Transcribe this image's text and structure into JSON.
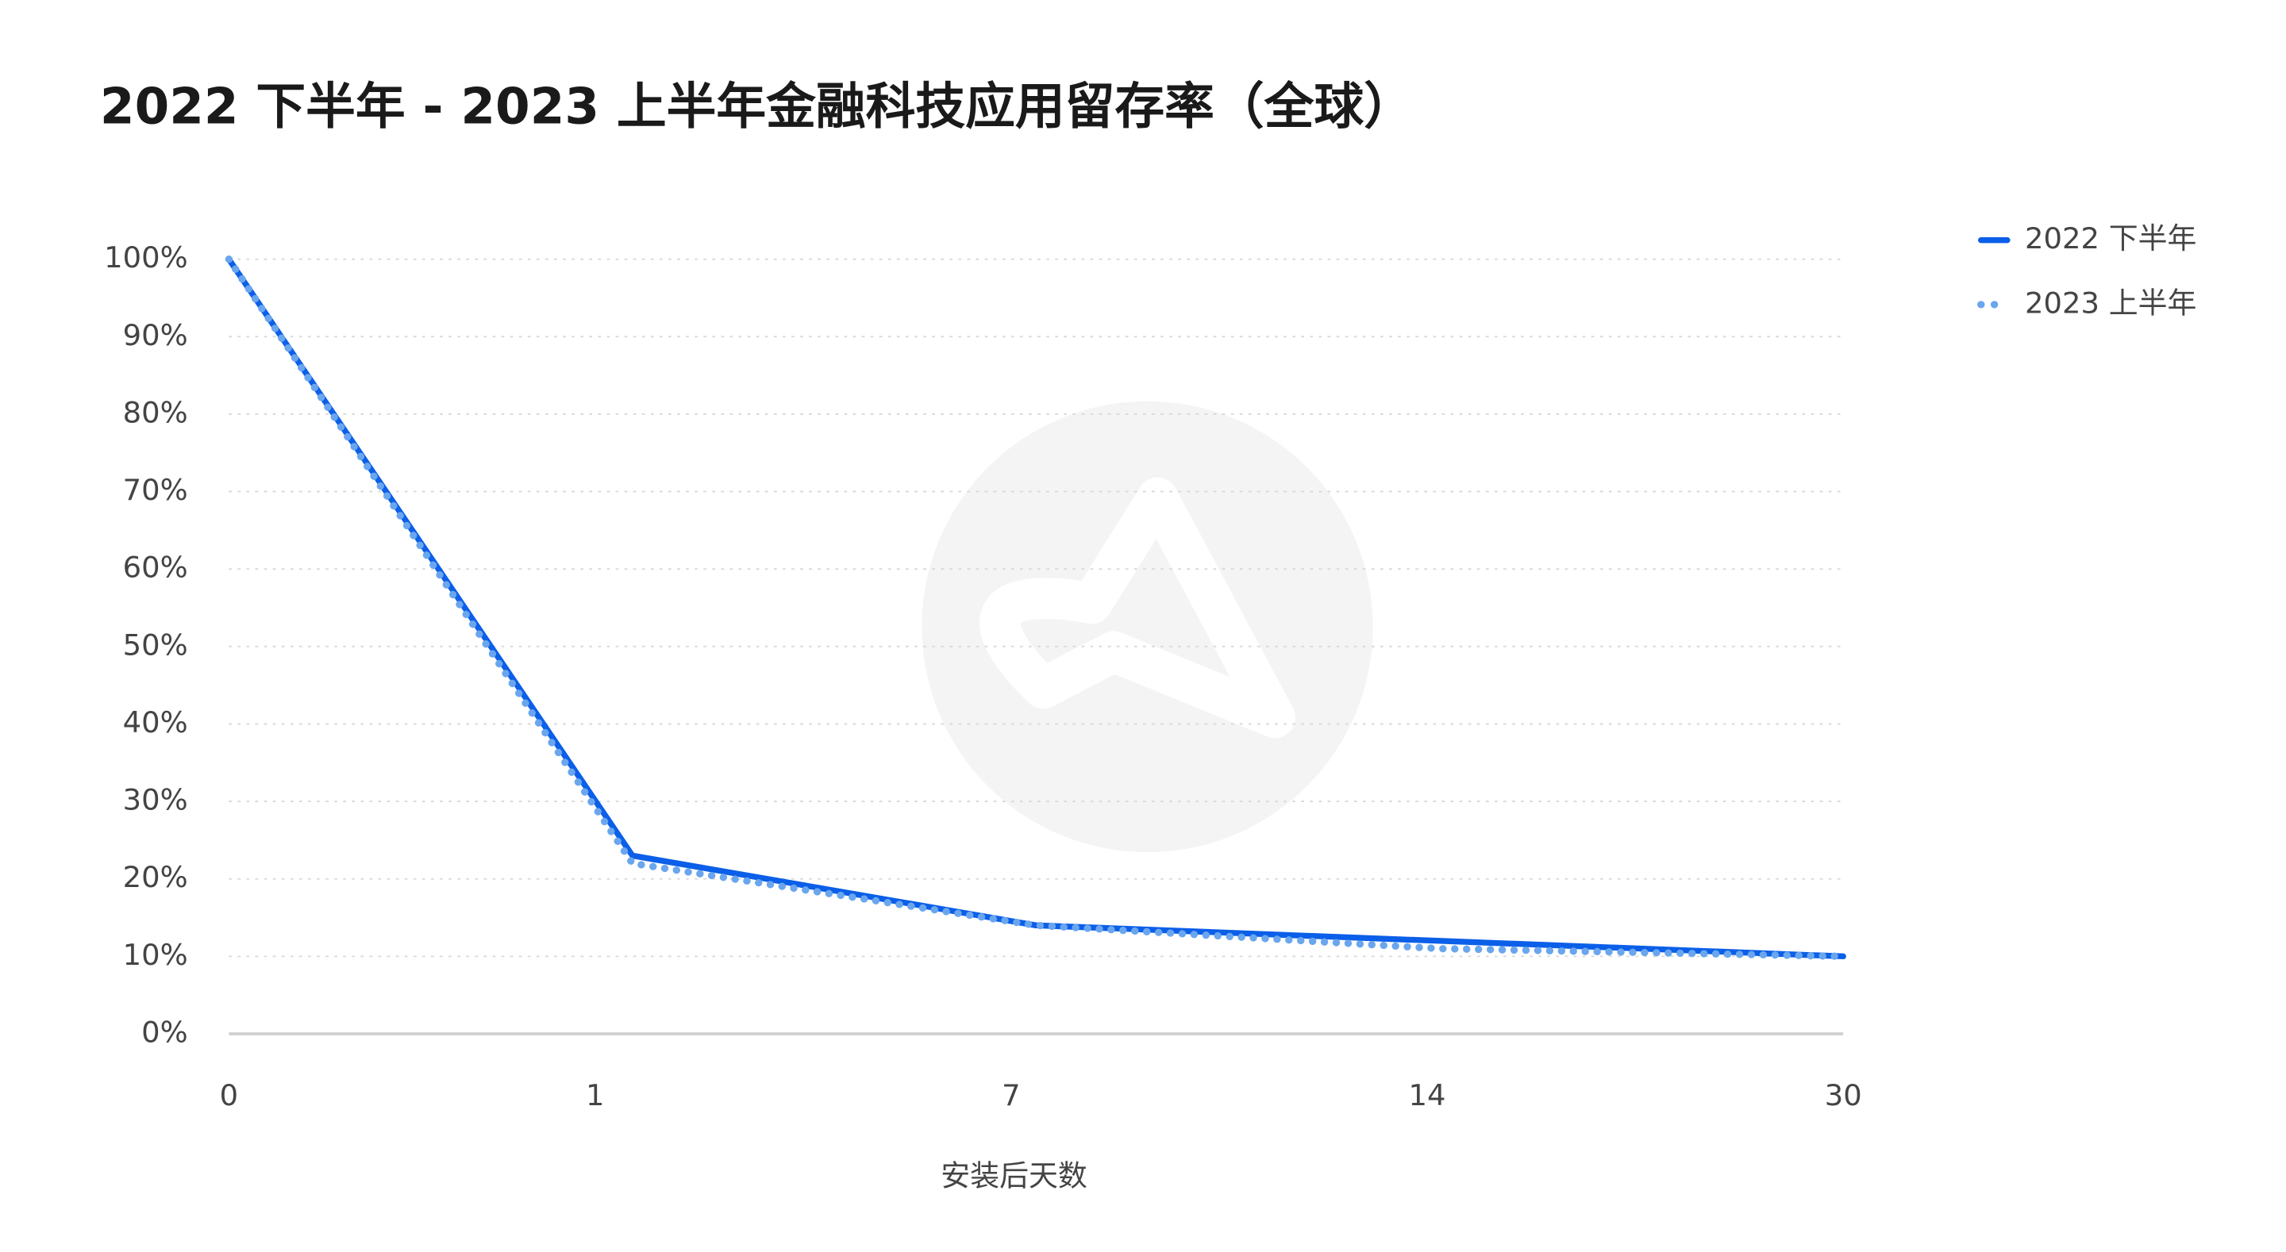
{
  "chart_data": {
    "type": "line",
    "title": "2022 下半年 - 2023 上半年金融科技应用留存率（全球）",
    "x_label": "安装后天数",
    "categories": [
      "0",
      "1",
      "7",
      "14",
      "30"
    ],
    "series": [
      {
        "name": "2022 下半年",
        "color": "#0b5fe8",
        "style": "solid",
        "values": [
          100,
          23,
          14,
          12,
          10
        ]
      },
      {
        "name": "2023 上半年",
        "color": "#6aa6ee",
        "style": "dotted",
        "values": [
          100,
          22,
          14,
          11,
          10
        ]
      }
    ],
    "ylim": [
      0,
      100
    ],
    "yticks": [
      {
        "value": 0,
        "label": "0%"
      },
      {
        "value": 10,
        "label": "10%"
      },
      {
        "value": 20,
        "label": "20%"
      },
      {
        "value": 30,
        "label": "30%"
      },
      {
        "value": 40,
        "label": "40%"
      },
      {
        "value": 50,
        "label": "50%"
      },
      {
        "value": 60,
        "label": "60%"
      },
      {
        "value": 70,
        "label": "70%"
      },
      {
        "value": 80,
        "label": "80%"
      },
      {
        "value": 90,
        "label": "90%"
      },
      {
        "value": 100,
        "label": "100%"
      }
    ],
    "grid": true,
    "legend": "top-right"
  }
}
